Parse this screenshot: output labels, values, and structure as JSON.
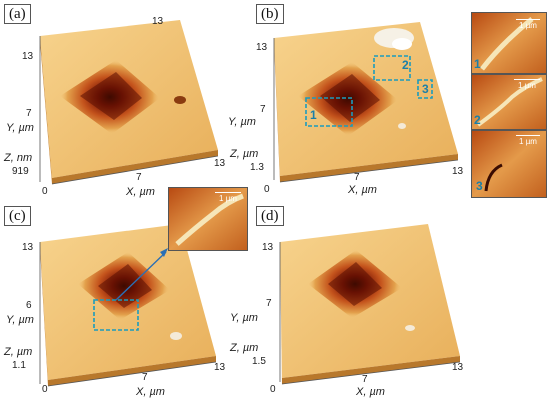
{
  "colors": {
    "surface_light": "#f2c77a",
    "surface_mid": "#e3a14c",
    "surface_dark": "#1e0500",
    "roi_box": "#1b9bbd",
    "arrow": "#2a6fb5"
  },
  "panels": {
    "a": {
      "label": "(a)",
      "y_top": "13",
      "y_mid": "7",
      "y_axis": "Y, µm",
      "z_axis": "Z, nm",
      "z_val": "919",
      "z_zero": "0",
      "x_zero": "0",
      "x_mid": "7",
      "x_max": "13",
      "x_axis": "X, µm"
    },
    "b": {
      "label": "(b)",
      "y_top": "13",
      "y_mid": "7",
      "y_axis": "Y, µm",
      "z_axis": "Z, µm",
      "z_val": "1.3",
      "z_zero": "0",
      "x_zero": "0",
      "x_mid": "7",
      "x_max": "13",
      "x_axis": "X, µm",
      "rois": [
        "1",
        "2",
        "3"
      ]
    },
    "c": {
      "label": "(c)",
      "y_top": "13",
      "y_mid": "6",
      "y_axis": "Y, µm",
      "z_axis": "Z, µm",
      "z_val": "1.1",
      "z_zero": "0",
      "x_zero": "0",
      "x_mid": "7",
      "x_max": "13",
      "x_axis": "X, µm",
      "inset_scale": "1 µm"
    },
    "d": {
      "label": "(d)",
      "y_top": "13",
      "y_mid": "7",
      "y_axis": "Y, µm",
      "z_axis": "Z, µm",
      "z_val": "1.5",
      "z_zero": "0",
      "x_zero": "0",
      "x_mid": "7",
      "x_max": "13",
      "x_axis": "X, µm"
    }
  },
  "right_insets": [
    {
      "num": "1",
      "scale": "1 µm"
    },
    {
      "num": "2",
      "scale": "1 µm"
    },
    {
      "num": "3",
      "scale": "1 µm"
    }
  ]
}
